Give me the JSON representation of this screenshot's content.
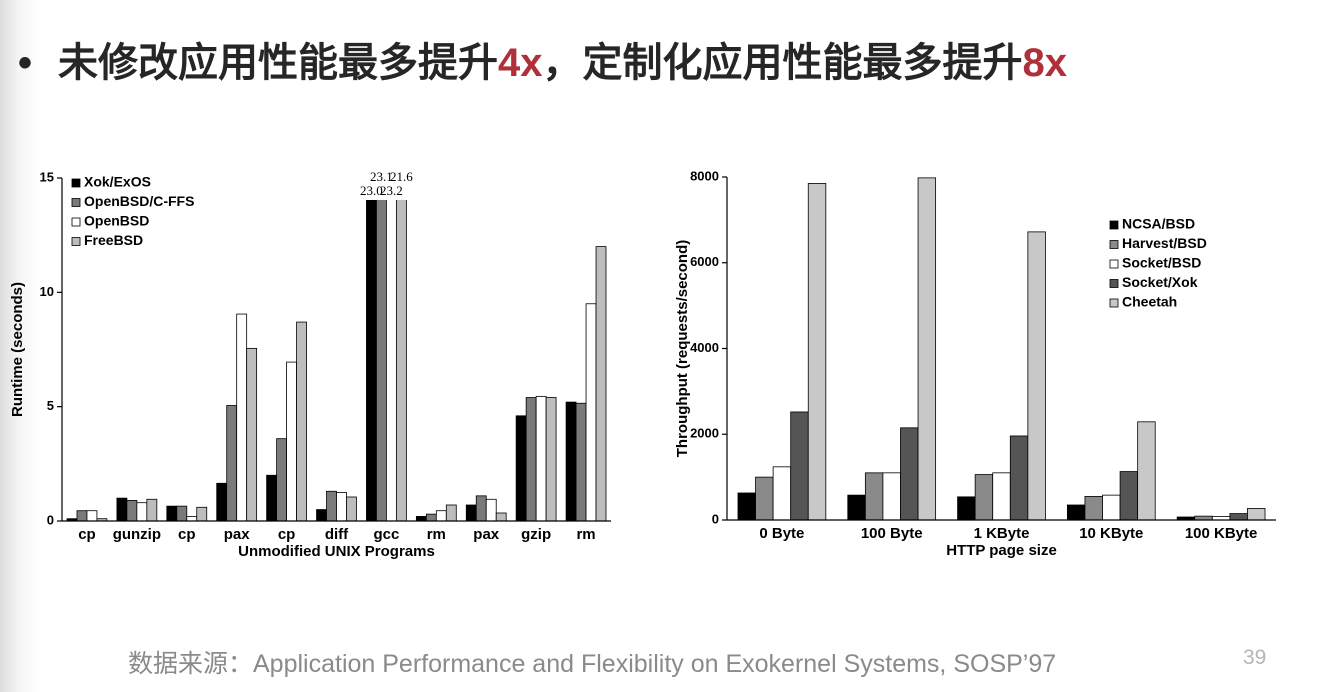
{
  "title": [
    "未修改应用性能最多提升",
    "4x",
    "，定制化应用性能最多提升",
    "8x"
  ],
  "source": "数据来源：Application Performance and Flexibility on Exokernel Systems, SOSP’97",
  "page_number": "39",
  "chart_data": [
    {
      "type": "bar",
      "xlabel": "Unmodified UNIX Programs",
      "ylabel": "Runtime (seconds)",
      "categories": [
        "cp",
        "gunzip",
        "cp",
        "pax",
        "cp",
        "diff",
        "gcc",
        "rm",
        "pax",
        "gzip",
        "rm"
      ],
      "ylim": [
        0,
        15
      ],
      "yticks": [
        0,
        5,
        10,
        15
      ],
      "legend": "upper left",
      "series": [
        {
          "name": "Xok/ExOS",
          "color": "#000000",
          "values": [
            0.1,
            1.0,
            0.65,
            1.65,
            2.0,
            0.5,
            23.0,
            0.2,
            0.7,
            4.6,
            5.2
          ],
          "value_labels": [
            null,
            null,
            null,
            null,
            null,
            null,
            "23.0",
            null,
            null,
            null,
            null
          ]
        },
        {
          "name": "OpenBSD/C-FFS",
          "color": "#7a7a7a",
          "values": [
            0.45,
            0.9,
            0.65,
            5.05,
            3.6,
            1.3,
            23.1,
            0.3,
            1.1,
            5.4,
            5.15
          ],
          "value_labels": [
            null,
            null,
            null,
            null,
            null,
            null,
            "23.1",
            null,
            null,
            null,
            null
          ]
        },
        {
          "name": "OpenBSD",
          "color": "#ffffff",
          "values": [
            0.45,
            0.8,
            0.2,
            9.05,
            6.95,
            1.25,
            23.2,
            0.45,
            0.95,
            5.45,
            9.5
          ],
          "value_labels": [
            null,
            null,
            null,
            null,
            null,
            null,
            "23.2",
            null,
            null,
            null,
            null
          ]
        },
        {
          "name": "FreeBSD",
          "color": "#bdbdbd",
          "values": [
            0.1,
            0.95,
            0.6,
            7.55,
            8.7,
            1.05,
            21.6,
            0.7,
            0.35,
            5.4,
            12.0
          ],
          "value_labels": [
            null,
            null,
            null,
            null,
            null,
            null,
            "21.6",
            null,
            null,
            null,
            null
          ]
        }
      ]
    },
    {
      "type": "bar",
      "xlabel": "HTTP page size",
      "ylabel": "Throughput (requests/second)",
      "categories": [
        "0 Byte",
        "100 Byte",
        "1 KByte",
        "10 KByte",
        "100 KByte"
      ],
      "ylim": [
        0,
        8000
      ],
      "yticks": [
        0,
        2000,
        4000,
        6000,
        8000
      ],
      "legend": "upper right",
      "series": [
        {
          "name": "NCSA/BSD",
          "color": "#000000",
          "values": [
            630,
            580,
            540,
            350,
            70
          ]
        },
        {
          "name": "Harvest/BSD",
          "color": "#8a8a8a",
          "values": [
            1000,
            1100,
            1060,
            550,
            90
          ]
        },
        {
          "name": "Socket/BSD",
          "color": "#ffffff",
          "values": [
            1240,
            1100,
            1100,
            580,
            80
          ]
        },
        {
          "name": "Socket/Xok",
          "color": "#555555",
          "values": [
            2520,
            2150,
            1960,
            1130,
            150
          ]
        },
        {
          "name": "Cheetah",
          "color": "#c8c8c8",
          "values": [
            7850,
            7980,
            6720,
            2290,
            270
          ]
        }
      ]
    }
  ]
}
